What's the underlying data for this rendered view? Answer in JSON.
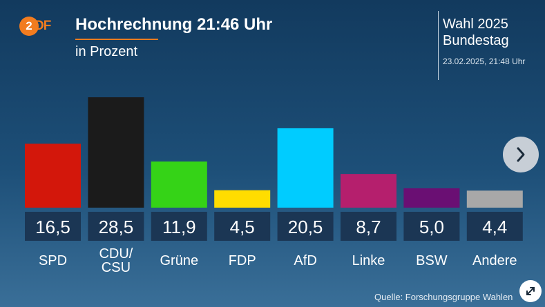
{
  "logo": {
    "text_circle": "2",
    "text_rest": "DF"
  },
  "header": {
    "title": "Hochrechnung 21:46 Uhr",
    "subtitle": "in Prozent"
  },
  "info": {
    "line1": "Wahl 2025",
    "line2": "Bundestag",
    "date": "23.02.2025, 21:48 Uhr"
  },
  "footer": {
    "source": "Quelle: Forschungsgruppe Wahlen"
  },
  "colors": {
    "accent": "#f27c1f",
    "value_box": "#1b3654",
    "next_button": "#c7ced6"
  },
  "icons": {
    "next": "chevron-right-icon",
    "expand": "expand-arrows-icon"
  },
  "chart_data": {
    "type": "bar",
    "categories": [
      "SPD",
      "CDU/\nCSU",
      "Grüne",
      "FDP",
      "AfD",
      "Linke",
      "BSW",
      "Andere"
    ],
    "values": [
      16.5,
      28.5,
      11.9,
      4.5,
      20.5,
      8.7,
      5.0,
      4.4
    ],
    "value_labels": [
      "16,5",
      "28,5",
      "11,9",
      "4,5",
      "20,5",
      "8,7",
      "5,0",
      "4,4"
    ],
    "colors": [
      "#d3170b",
      "#1b1b1b",
      "#35d317",
      "#ffdd00",
      "#00ccff",
      "#b51f6d",
      "#6a0f73",
      "#a8a8a8"
    ],
    "title": "Hochrechnung 21:46 Uhr",
    "ylabel": "in Prozent",
    "ylim": [
      0,
      28.5
    ],
    "grid": false,
    "legend": "none"
  }
}
